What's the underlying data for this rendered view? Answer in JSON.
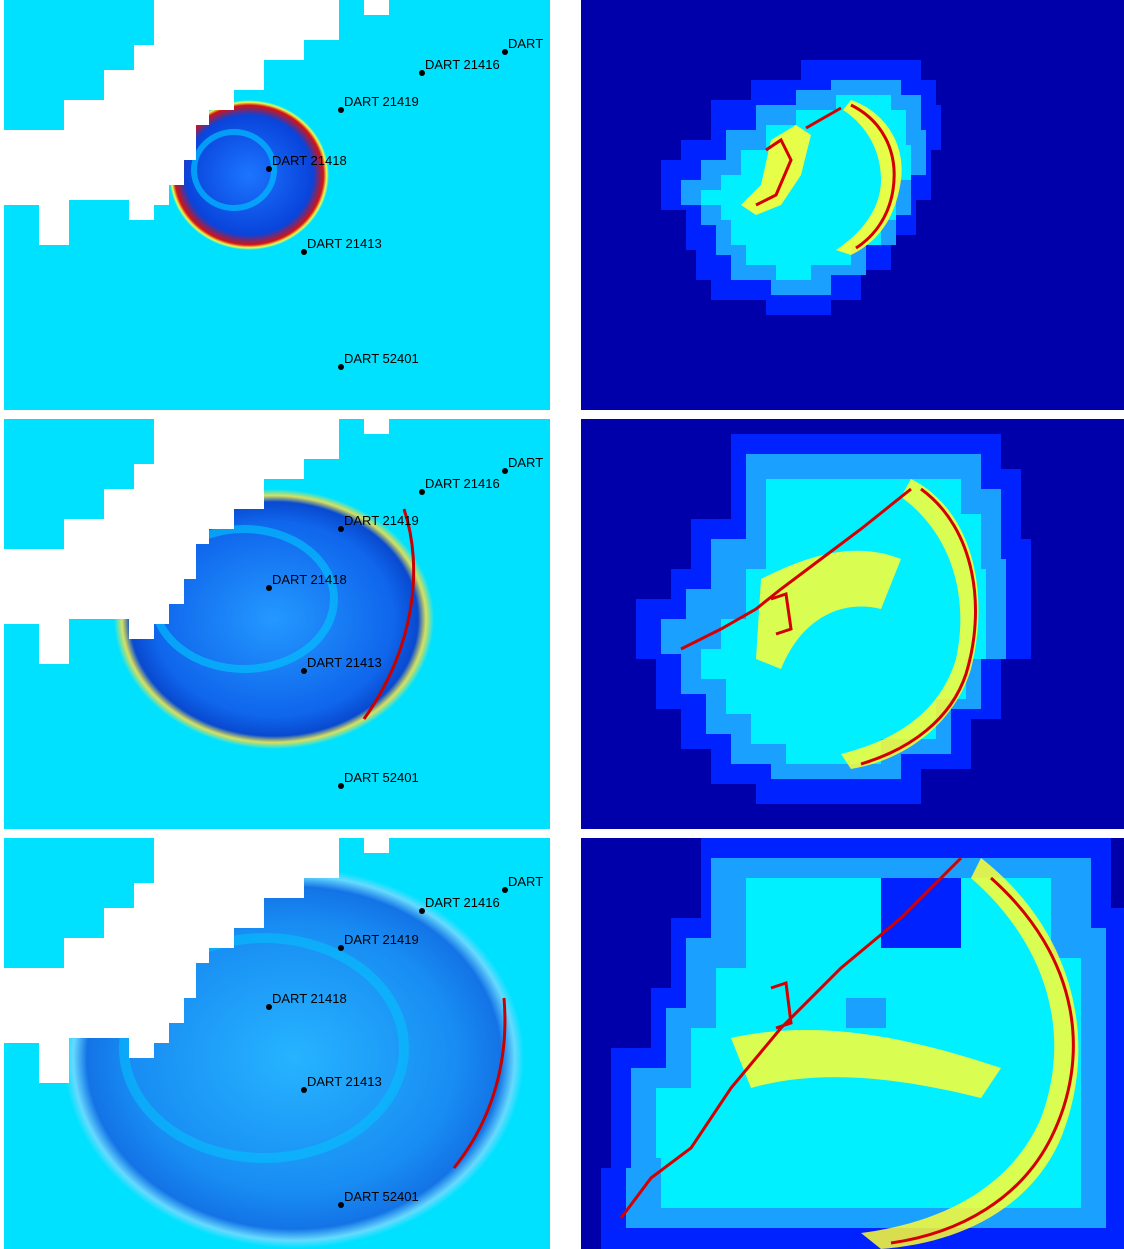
{
  "colors": {
    "ocean": "#00e1ff",
    "land": "#ffffff",
    "station": "#000000",
    "aux_bg": "#0000aa",
    "aux_coarse": "#0022ff",
    "aux_medium": "#1aa0ff",
    "aux_fine": "#00f0ff",
    "aux_finest": "#ffff33",
    "aux_max": "#d40000"
  },
  "frames": [
    {
      "stations": [
        {
          "label": "DART 21416"
        },
        {
          "label": "DART 21419"
        },
        {
          "label": "DART 21418"
        },
        {
          "label": "DART 21413"
        },
        {
          "label": "DART 52401"
        },
        {
          "label": "DART"
        }
      ]
    },
    {
      "stations": [
        {
          "label": "DART 21416"
        },
        {
          "label": "DART 21419"
        },
        {
          "label": "DART 21418"
        },
        {
          "label": "DART 21413"
        },
        {
          "label": "DART 52401"
        },
        {
          "label": "DART"
        }
      ]
    },
    {
      "stations": [
        {
          "label": "DART 21416"
        },
        {
          "label": "DART 21419"
        },
        {
          "label": "DART 21418"
        },
        {
          "label": "DART 21413"
        },
        {
          "label": "DART 52401"
        },
        {
          "label": "DART"
        }
      ]
    }
  ]
}
